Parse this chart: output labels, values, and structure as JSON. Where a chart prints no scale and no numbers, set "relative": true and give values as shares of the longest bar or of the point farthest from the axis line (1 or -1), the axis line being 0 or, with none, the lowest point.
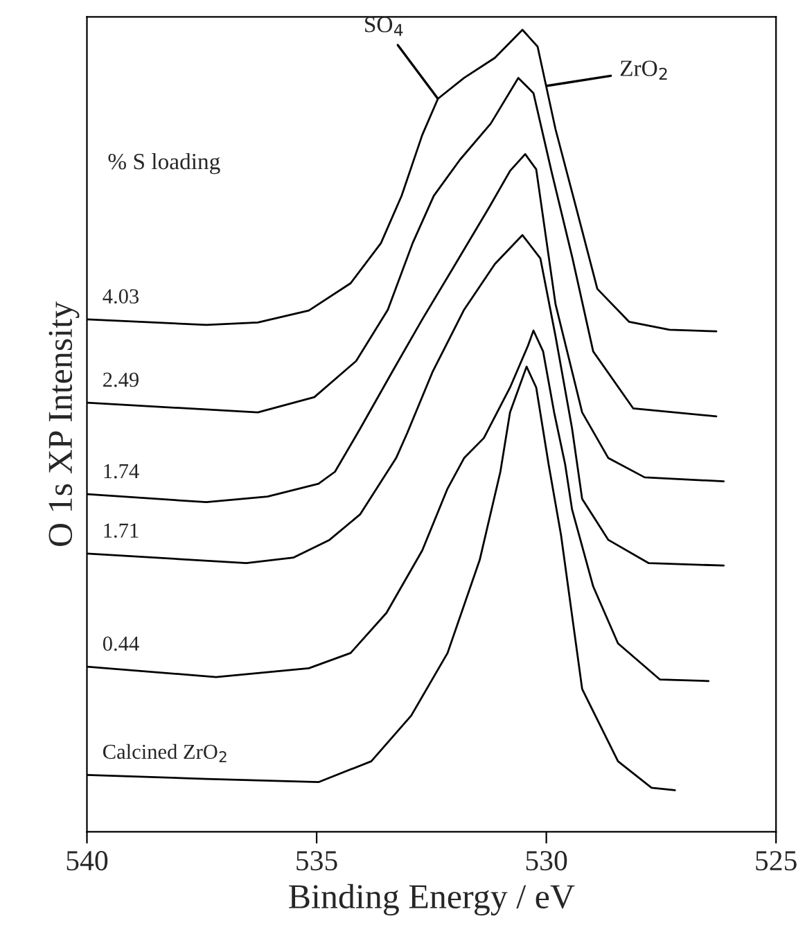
{
  "chart_data": {
    "type": "line",
    "relative": true,
    "xlabel": "Binding Energy / eV",
    "ylabel": "O 1s XP Intensity",
    "xlim": [
      540,
      525
    ],
    "xticks": [
      540,
      535,
      530,
      525
    ],
    "grid": false,
    "legend": false,
    "marker": "none",
    "line_style": "solid",
    "annotations": [
      "% S loading",
      {
        "text": "SO$_{4}$",
        "x": 532.36,
        "y": 0.914
      },
      {
        "text": "ZrO$_{2}$",
        "x": 530.0,
        "y": 0.93
      }
    ],
    "series": [
      {
        "name": "4.03",
        "color": "#000000",
        "x": [
          540,
          537.4,
          536.28,
          535.17,
          534.26,
          533.6,
          533.15,
          532.7,
          532.36,
          531.79,
          531.12,
          530.52,
          530.19,
          529.8,
          529.35,
          528.89,
          528.2,
          527.32,
          526.3
        ],
        "values": [
          0.639,
          0.632,
          0.635,
          0.65,
          0.684,
          0.734,
          0.793,
          0.869,
          0.914,
          0.94,
          0.965,
          1.0,
          0.979,
          0.876,
          0.778,
          0.677,
          0.636,
          0.626,
          0.624
        ]
      },
      {
        "name": "2.49",
        "color": "#000000",
        "x": [
          540,
          536.28,
          535.05,
          534.14,
          533.45,
          532.91,
          532.45,
          531.88,
          531.21,
          530.61,
          530.28,
          529.89,
          529.43,
          528.98,
          528.11,
          526.3
        ],
        "values": [
          0.535,
          0.523,
          0.542,
          0.587,
          0.651,
          0.734,
          0.793,
          0.838,
          0.883,
          0.94,
          0.921,
          0.824,
          0.715,
          0.599,
          0.528,
          0.518
        ]
      },
      {
        "name": "1.74",
        "color": "#000000",
        "x": [
          540,
          537.4,
          536.07,
          534.96,
          534.6,
          534.05,
          533.36,
          532.7,
          532.03,
          531.24,
          530.79,
          530.46,
          530.22,
          529.8,
          529.22,
          528.65,
          527.86,
          526.14
        ],
        "values": [
          0.421,
          0.411,
          0.418,
          0.434,
          0.449,
          0.503,
          0.573,
          0.639,
          0.703,
          0.779,
          0.824,
          0.845,
          0.826,
          0.658,
          0.523,
          0.466,
          0.442,
          0.437
        ]
      },
      {
        "name": "1.71",
        "color": "#000000",
        "x": [
          540,
          536.53,
          535.5,
          534.72,
          534.05,
          533.27,
          533.03,
          532.48,
          531.79,
          531.12,
          530.52,
          530.13,
          529.8,
          529.44,
          529.22,
          528.65,
          527.77,
          526.14
        ],
        "values": [
          0.347,
          0.335,
          0.342,
          0.364,
          0.396,
          0.466,
          0.497,
          0.573,
          0.651,
          0.708,
          0.744,
          0.715,
          0.618,
          0.503,
          0.415,
          0.364,
          0.335,
          0.332
        ]
      },
      {
        "name": "0.44",
        "color": "#000000",
        "x": [
          540,
          537.19,
          535.17,
          534.26,
          533.48,
          532.7,
          532.15,
          531.79,
          531.36,
          530.79,
          530.4,
          530.28,
          530.07,
          529.83,
          529.59,
          529.44,
          528.98,
          528.44,
          527.53,
          526.47
        ],
        "values": [
          0.206,
          0.193,
          0.204,
          0.223,
          0.273,
          0.351,
          0.428,
          0.466,
          0.491,
          0.554,
          0.606,
          0.625,
          0.599,
          0.523,
          0.458,
          0.402,
          0.306,
          0.235,
          0.19,
          0.188
        ]
      },
      {
        "name": "Calcined ZrO$_{2}$",
        "color": "#000000",
        "x": [
          540,
          537.4,
          534.96,
          533.81,
          532.94,
          532.15,
          531.45,
          531.0,
          530.79,
          530.43,
          530.22,
          529.95,
          529.68,
          529.22,
          528.44,
          527.71,
          527.2
        ],
        "values": [
          0.071,
          0.066,
          0.062,
          0.088,
          0.145,
          0.223,
          0.339,
          0.449,
          0.523,
          0.58,
          0.554,
          0.458,
          0.37,
          0.178,
          0.088,
          0.055,
          0.052
        ]
      }
    ]
  }
}
